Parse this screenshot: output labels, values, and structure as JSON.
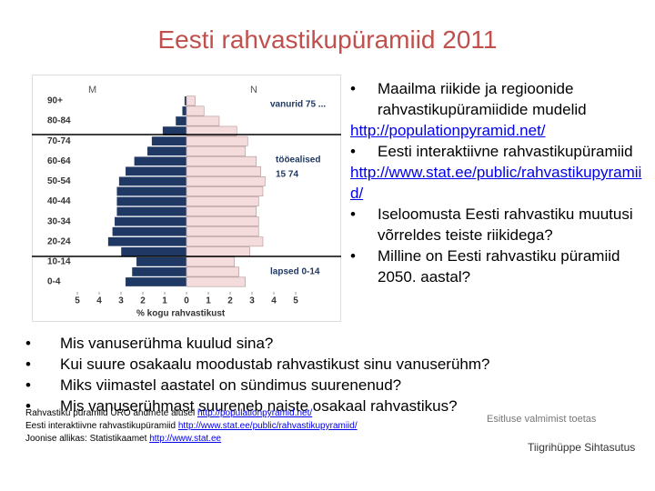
{
  "header": {
    "title": "Eesti rahvastikupüramiid 2011"
  },
  "chart_data": {
    "type": "pyramid",
    "x_label": "% kogu rahvastikust",
    "categories": [
      "0-4",
      null,
      "10-14",
      null,
      "20-24",
      null,
      "30-34",
      null,
      "40-44",
      null,
      "50-54",
      null,
      "60-64",
      null,
      "70-74",
      null,
      "80-84",
      null,
      "90+"
    ],
    "series": [
      {
        "name": "M",
        "color": "#1f3864",
        "values": [
          2.8,
          2.5,
          2.3,
          3.0,
          3.6,
          3.4,
          3.3,
          3.2,
          3.2,
          3.2,
          3.1,
          2.8,
          2.4,
          1.8,
          1.6,
          1.1,
          0.5,
          0.2,
          0.1
        ]
      },
      {
        "name": "N",
        "color": "#f4dcdc",
        "values": [
          2.7,
          2.4,
          2.2,
          2.9,
          3.5,
          3.3,
          3.3,
          3.2,
          3.3,
          3.5,
          3.6,
          3.4,
          3.2,
          2.7,
          2.8,
          2.3,
          1.5,
          0.8,
          0.4
        ]
      }
    ],
    "xlim": [
      -5,
      5
    ],
    "xticks": [
      {
        "value": -5,
        "label": "5"
      },
      {
        "value": -4,
        "label": "4"
      },
      {
        "value": -3,
        "label": "3"
      },
      {
        "value": -2,
        "label": "2"
      },
      {
        "value": -1,
        "label": "1"
      },
      0,
      1,
      2,
      3,
      4,
      5
    ],
    "annotations": [
      "vanurid 75 ...",
      "tööealised",
      "15 74",
      "lapsed 0-14"
    ]
  },
  "right_list": [
    {
      "text": "Maailma riikide ja regioonide rahvastikupüramiidide mudelid",
      "link": "http://populationpyramid.net/"
    },
    {
      "text": "Eesti interaktiivne rahvastikupüramiid",
      "link": "http://www.stat.ee/public/rahvastikupyramiid/"
    },
    {
      "text": "Iseloomusta Eesti rahvastiku muutusi võrreldes teiste riikidega?"
    },
    {
      "text": "Milline on Eesti rahvastiku püramiid 2050. aastal?"
    }
  ],
  "questions": [
    "Mis vanuserühma kuulud sina?",
    "Kui suure osakaalu moodustab rahvastikust sinu vanuserühm?",
    "Miks viimastel aastatel on sündimus suurenenud?",
    "Mis vanuserühmast suureneb naiste osakaal rahvastikus?"
  ],
  "footer": [
    {
      "text": "Rahvastiku püramiid ÜRO andmete alusel",
      "link": "http://populationpyramid.net/"
    },
    {
      "text": "Eesti interaktiivne rahvastikupüramiid",
      "link": "http://www.stat.ee/public/rahvastikupyramiid/"
    },
    {
      "text": "Joonise allikas: Statistikaamet",
      "link": "http://www.stat.ee"
    }
  ],
  "sponsor": {
    "caption": "Esitluse valmimist toetas",
    "name": "Tiigrihüppe Sihtasutus"
  }
}
